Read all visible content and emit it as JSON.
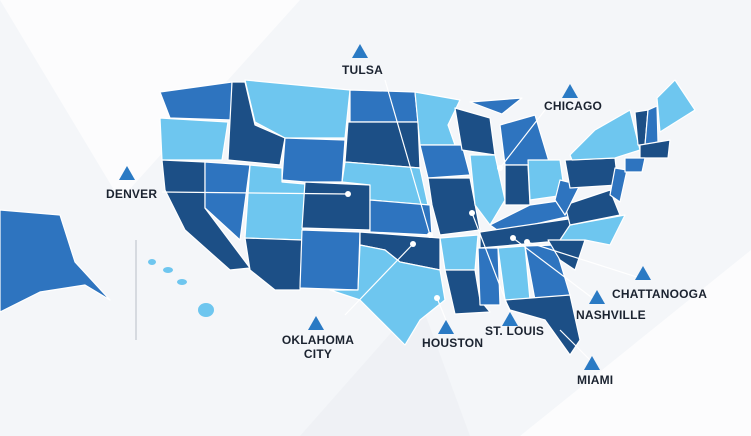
{
  "cities": [
    {
      "label": "TULSA"
    },
    {
      "label": "CHICAGO"
    },
    {
      "label": "DENVER"
    },
    {
      "label": "OKLAHOMA CITY"
    },
    {
      "label": "HOUSTON"
    },
    {
      "label": "ST. LOUIS"
    },
    {
      "label": "NASHVILLE"
    },
    {
      "label": "CHATTANOOGA"
    },
    {
      "label": "MIAMI"
    }
  ]
}
